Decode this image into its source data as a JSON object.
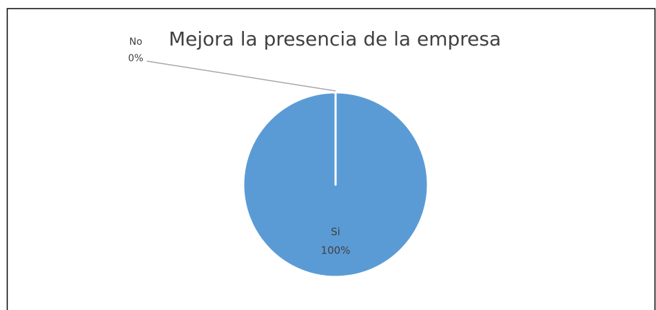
{
  "chart_data": {
    "type": "pie",
    "title": "Mejora la presencia de la empresa",
    "categories": [
      "Si",
      "No"
    ],
    "values": [
      100,
      0
    ],
    "value_labels": [
      "100%",
      "0%"
    ],
    "colors": [
      "#5b9bd5",
      "#ed7d31"
    ]
  }
}
